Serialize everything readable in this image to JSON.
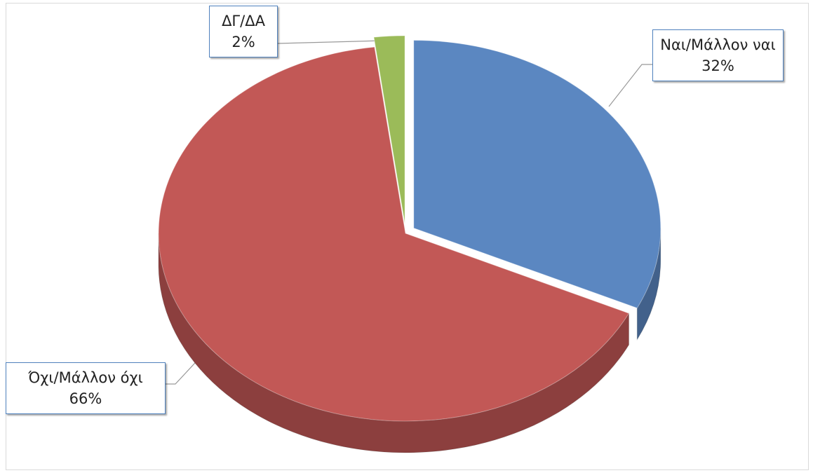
{
  "chart_data": {
    "type": "pie",
    "categories": [
      "Ναι/Μάλλον ναι",
      "Όχι/Μάλλον όχι",
      "ΔΓ/ΔΑ"
    ],
    "values": [
      32,
      66,
      2
    ],
    "value_labels": [
      "32%",
      "66%",
      "2%"
    ],
    "colors": [
      "#5b87c1",
      "#c25856",
      "#9bbb59"
    ]
  }
}
